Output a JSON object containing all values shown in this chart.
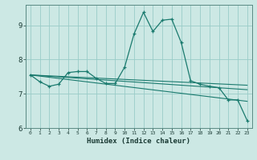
{
  "title": "",
  "xlabel": "Humidex (Indice chaleur)",
  "background_color": "#cce8e4",
  "grid_color": "#99ccc8",
  "line_color": "#1a7a6e",
  "xlim": [
    -0.5,
    23.5
  ],
  "ylim": [
    6.0,
    9.6
  ],
  "yticks": [
    6,
    7,
    8,
    9
  ],
  "xticks": [
    0,
    1,
    2,
    3,
    4,
    5,
    6,
    7,
    8,
    9,
    10,
    11,
    12,
    13,
    14,
    15,
    16,
    17,
    18,
    19,
    20,
    21,
    22,
    23
  ],
  "series1_x": [
    0,
    1,
    2,
    3,
    4,
    5,
    6,
    7,
    8,
    9,
    10,
    11,
    12,
    13,
    14,
    15,
    16,
    17,
    18,
    19,
    20,
    21,
    22,
    23
  ],
  "series1_y": [
    7.55,
    7.35,
    7.22,
    7.28,
    7.62,
    7.65,
    7.65,
    7.45,
    7.3,
    7.3,
    7.78,
    8.75,
    9.38,
    8.82,
    9.15,
    9.18,
    8.5,
    7.38,
    7.28,
    7.22,
    7.18,
    6.82,
    6.82,
    6.22
  ],
  "series2_x": [
    0,
    23
  ],
  "series2_y": [
    7.55,
    6.78
  ],
  "series3_x": [
    0,
    23
  ],
  "series3_y": [
    7.55,
    7.12
  ],
  "series4_x": [
    0,
    23
  ],
  "series4_y": [
    7.55,
    7.25
  ]
}
